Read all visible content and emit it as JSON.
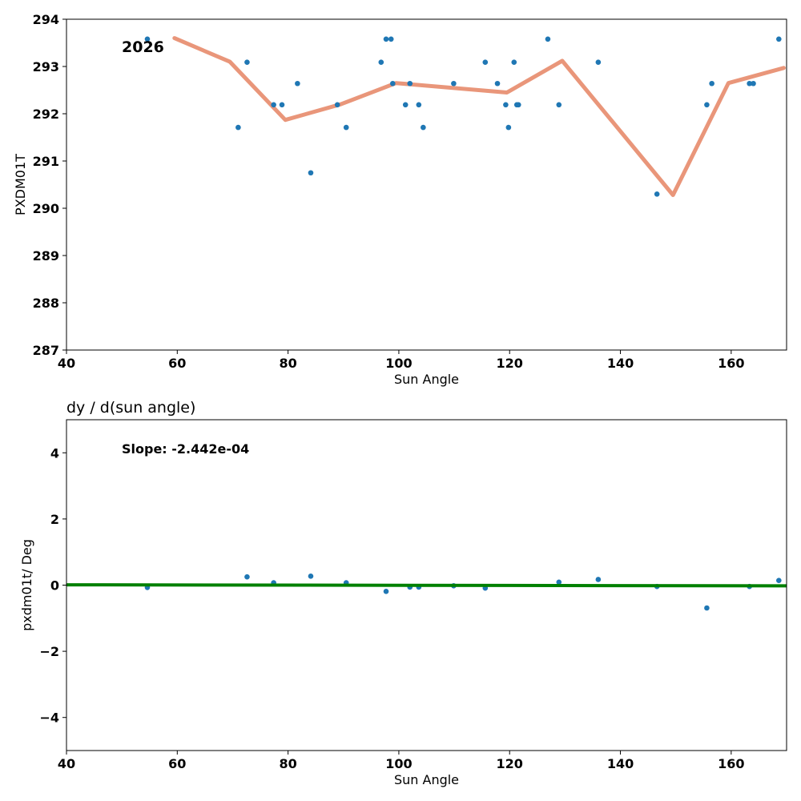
{
  "chart_data": [
    {
      "type": "scatter",
      "title": "",
      "xlabel": "Sun Angle",
      "ylabel": "PXDM01T",
      "xlim": [
        40,
        170
      ],
      "ylim": [
        287,
        294
      ],
      "xticks": [
        40,
        60,
        80,
        100,
        120,
        140,
        160
      ],
      "yticks": [
        287,
        288,
        289,
        290,
        291,
        292,
        293,
        294
      ],
      "annotation": "2026",
      "grid": false,
      "point_color": "#1f77b4",
      "line_color": "#e9967a",
      "points": [
        [
          54.6,
          293.58
        ],
        [
          71.0,
          291.71
        ],
        [
          72.6,
          293.09
        ],
        [
          77.4,
          292.19
        ],
        [
          78.9,
          292.19
        ],
        [
          81.7,
          292.64
        ],
        [
          84.1,
          290.75
        ],
        [
          88.9,
          292.19
        ],
        [
          90.5,
          291.71
        ],
        [
          96.8,
          293.09
        ],
        [
          97.7,
          293.58
        ],
        [
          98.6,
          293.58
        ],
        [
          98.9,
          292.64
        ],
        [
          101.2,
          292.19
        ],
        [
          102.0,
          292.64
        ],
        [
          103.6,
          292.19
        ],
        [
          104.4,
          291.71
        ],
        [
          109.9,
          292.64
        ],
        [
          115.6,
          293.09
        ],
        [
          117.8,
          292.64
        ],
        [
          119.3,
          292.19
        ],
        [
          119.8,
          291.71
        ],
        [
          120.8,
          293.09
        ],
        [
          121.3,
          292.19
        ],
        [
          121.6,
          292.19
        ],
        [
          126.9,
          293.58
        ],
        [
          128.9,
          292.19
        ],
        [
          136.0,
          293.09
        ],
        [
          146.6,
          290.3
        ],
        [
          155.6,
          292.19
        ],
        [
          156.5,
          292.64
        ],
        [
          163.3,
          292.64
        ],
        [
          164.0,
          292.64
        ],
        [
          168.6,
          293.58
        ]
      ],
      "line": [
        [
          59.5,
          293.6
        ],
        [
          69.5,
          293.1
        ],
        [
          79.5,
          291.87
        ],
        [
          89.5,
          292.2
        ],
        [
          99.5,
          292.65
        ],
        [
          119.5,
          292.45
        ],
        [
          129.5,
          293.12
        ],
        [
          149.5,
          290.28
        ],
        [
          159.5,
          292.65
        ],
        [
          169.5,
          292.97
        ]
      ]
    },
    {
      "type": "scatter",
      "title": "dy / d(sun angle)",
      "xlabel": "Sun Angle",
      "ylabel": "pxdm01t/ Deg",
      "xlim": [
        40,
        170
      ],
      "ylim": [
        -5,
        5
      ],
      "xticks": [
        40,
        60,
        80,
        100,
        120,
        140,
        160
      ],
      "yticks": [
        -4,
        -2,
        0,
        2,
        4
      ],
      "ytick_labels": [
        "−4",
        "−2",
        "0",
        "2",
        "4"
      ],
      "annotation": "Slope: -2.442e-04",
      "grid": false,
      "point_color": "#1f77b4",
      "fit_color": "#008000",
      "fit_slope": -0.0002442,
      "fit_intercept": 0.0095,
      "points": [
        [
          54.6,
          -0.07
        ],
        [
          72.6,
          0.25
        ],
        [
          77.4,
          0.07
        ],
        [
          84.1,
          0.27
        ],
        [
          90.5,
          0.07
        ],
        [
          97.7,
          -0.19
        ],
        [
          102.0,
          -0.06
        ],
        [
          103.6,
          -0.06
        ],
        [
          109.9,
          -0.02
        ],
        [
          115.6,
          -0.09
        ],
        [
          128.9,
          0.09
        ],
        [
          136.0,
          0.17
        ],
        [
          146.6,
          -0.04
        ],
        [
          155.6,
          -0.69
        ],
        [
          163.3,
          -0.04
        ],
        [
          168.6,
          0.14
        ]
      ]
    }
  ]
}
